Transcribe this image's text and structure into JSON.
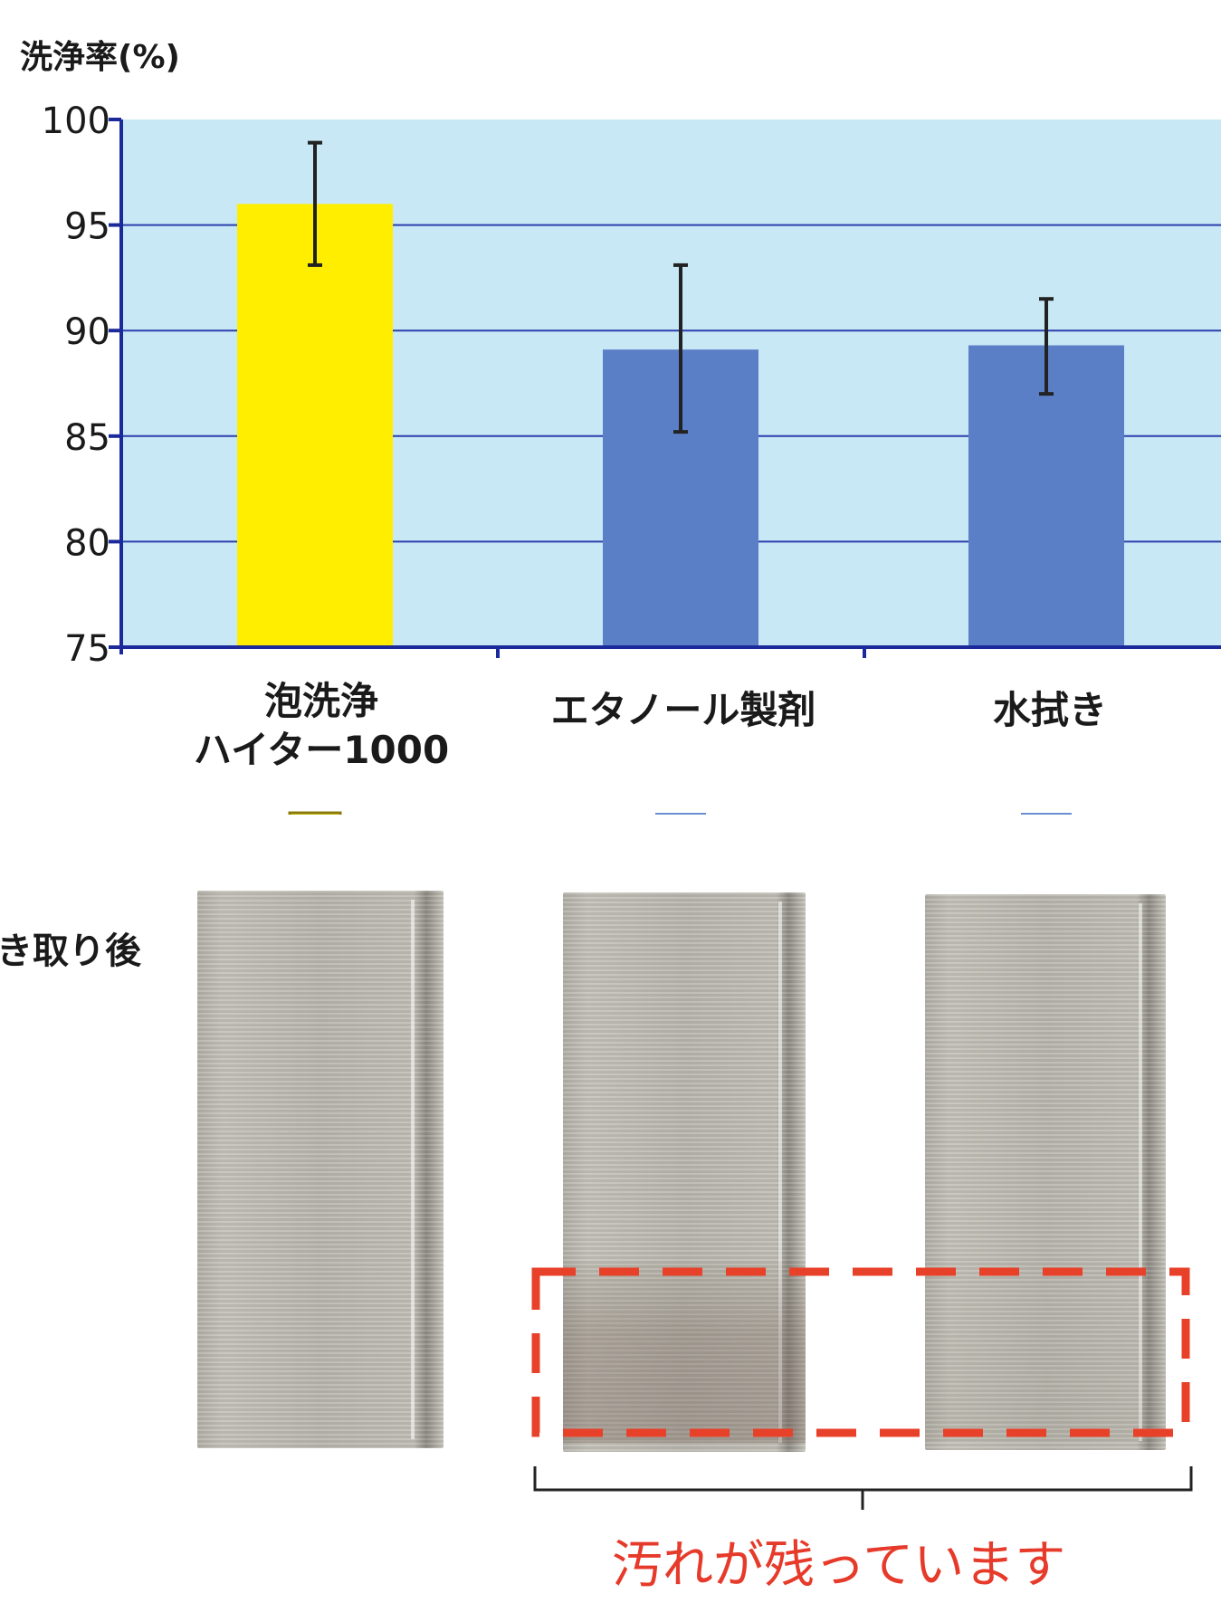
{
  "chart_data": {
    "type": "bar",
    "ylabel": "洗浄率(%)",
    "ylim": [
      75,
      100
    ],
    "yticks": [
      75,
      80,
      85,
      90,
      95,
      100
    ],
    "grid": true,
    "categories": [
      {
        "lines": [
          "泡洗浄",
          "ハイター1000"
        ]
      },
      {
        "lines": [
          "エタノール製剤"
        ]
      },
      {
        "lines": [
          "水拭き"
        ]
      }
    ],
    "values": [
      96,
      89.1,
      89.3
    ],
    "error_low": [
      93.1,
      85.2,
      87.0
    ],
    "error_high": [
      98.9,
      93.1,
      91.5
    ],
    "colors": {
      "highlight": "#ffee00",
      "bar": "#5b7fc7",
      "plot_bg": "#c8e8f5",
      "axis": "#1b2a9a",
      "arrow_blue": "#6b8fd0",
      "stain_box": "#e8412a"
    }
  },
  "photos": {
    "row_label": "き取り後",
    "note": "汚れが残っています"
  }
}
